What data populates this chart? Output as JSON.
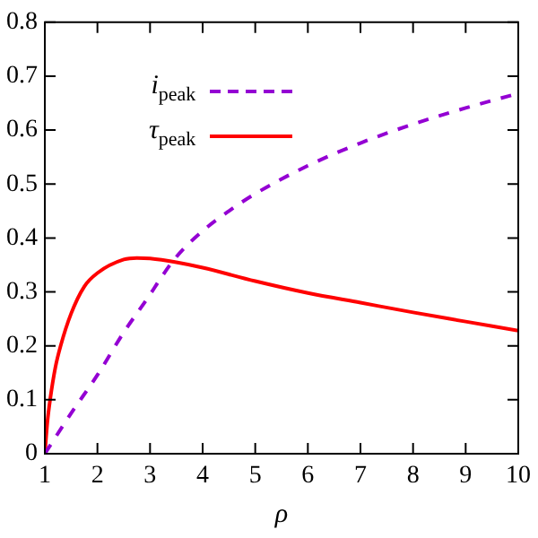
{
  "chart_data": {
    "type": "line",
    "xlabel": "ρ",
    "xlim": [
      1,
      10
    ],
    "xticks": [
      1,
      2,
      3,
      4,
      5,
      6,
      7,
      8,
      9,
      10
    ],
    "ylim": [
      0,
      0.8
    ],
    "yticks": [
      0,
      0.1,
      0.2,
      0.3,
      0.4,
      0.5,
      0.6,
      0.7,
      0.8
    ],
    "grid": false,
    "legend": "top",
    "marker": "none",
    "series": [
      {
        "name": "i$_{peak}$",
        "color": "#9400d3",
        "line_style": "dashed",
        "x": [
          1,
          1.5,
          2,
          2.5,
          3,
          3.2,
          3.5,
          4,
          4.5,
          5,
          6,
          7,
          8,
          9,
          10
        ],
        "values": [
          0,
          0.075,
          0.146,
          0.225,
          0.295,
          0.325,
          0.365,
          0.413,
          0.45,
          0.482,
          0.534,
          0.576,
          0.611,
          0.641,
          0.668
        ]
      },
      {
        "name": "τ$_{peak}$",
        "color": "#ff0000",
        "line_style": "solid",
        "x": [
          1,
          1.05,
          1.1,
          1.2,
          1.3,
          1.5,
          1.75,
          2,
          2.5,
          2.75,
          3,
          3.5,
          4,
          5,
          6,
          7,
          8,
          9,
          10
        ],
        "values": [
          0,
          0.06,
          0.1,
          0.16,
          0.2,
          0.26,
          0.31,
          0.335,
          0.36,
          0.363,
          0.362,
          0.355,
          0.345,
          0.32,
          0.298,
          0.28,
          0.262,
          0.245,
          0.228
        ]
      }
    ]
  }
}
